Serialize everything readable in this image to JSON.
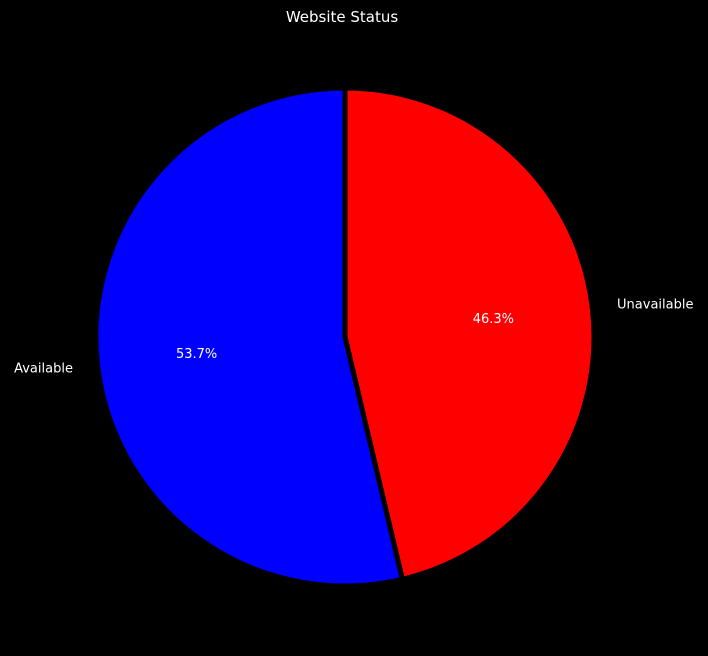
{
  "chart_data": {
    "type": "pie",
    "title": "Website Status",
    "start_angle": 90,
    "direction": "clockwise",
    "background": "#000000",
    "slice_edge_color": "#000000",
    "text_color": "#ffffff",
    "slices": [
      {
        "label": "Unavailable",
        "value": 46.3,
        "pct_label": "46.3%",
        "color": "#ff0000"
      },
      {
        "label": "Available",
        "value": 53.7,
        "pct_label": "53.7%",
        "color": "#0000ff"
      }
    ]
  }
}
